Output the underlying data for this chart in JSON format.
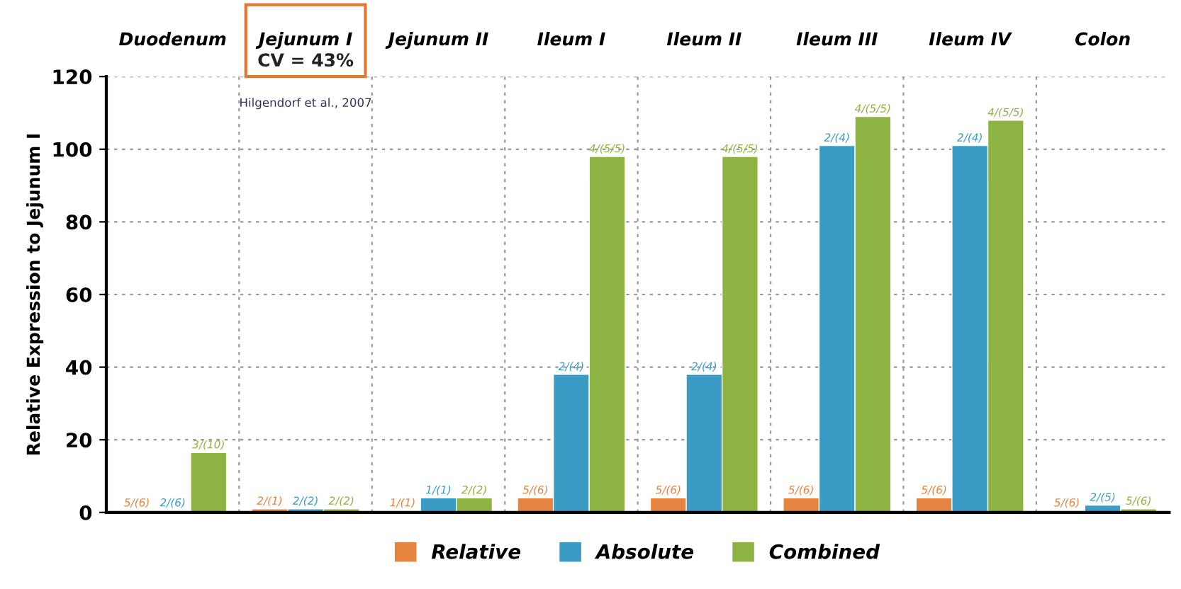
{
  "chart_data": {
    "type": "bar",
    "ylabel": "Relative Expression to Jejunum I",
    "categories": [
      "Duodenum",
      "Jejunum I",
      "Jejunum II",
      "Ileum I",
      "Ileum II",
      "Ileum III",
      "Ileum IV",
      "Colon"
    ],
    "series": [
      {
        "name": "Relative",
        "color": "#e5843f",
        "values": [
          0.5,
          1,
          0.5,
          4,
          4,
          4,
          4,
          0.5
        ],
        "value_labels": [
          "5/(6)",
          "2/(1)",
          "1/(1)",
          "5/(6)",
          "5/(6)",
          "5/(6)",
          "5/(6)",
          "5/(6)"
        ]
      },
      {
        "name": "Absolute",
        "color": "#3a9cc4",
        "values": [
          0.5,
          1,
          4,
          38,
          38,
          101,
          101,
          2
        ],
        "value_labels": [
          "2/(6)",
          "2/(2)",
          "1/(1)",
          "2/(4)",
          "2/(4)",
          "2/(4)",
          "2/(4)",
          "2/(5)"
        ]
      },
      {
        "name": "Combined",
        "color": "#8db443",
        "values": [
          16.5,
          1,
          4,
          98,
          98,
          109,
          108,
          1
        ],
        "value_labels": [
          "3/(10)",
          "2/(2)",
          "2/(2)",
          "4/(5/5)",
          "4/(5/5)",
          "4/(5/5)",
          "4/(5/5)",
          "5/(6)"
        ]
      }
    ],
    "ylim": [
      0,
      120
    ],
    "yticks": [
      0,
      20,
      40,
      60,
      80,
      100,
      120
    ],
    "grid": true,
    "legend": "bottom",
    "annotations": [
      "CV = 43%",
      "Hilgendorf et al., 2007"
    ]
  }
}
